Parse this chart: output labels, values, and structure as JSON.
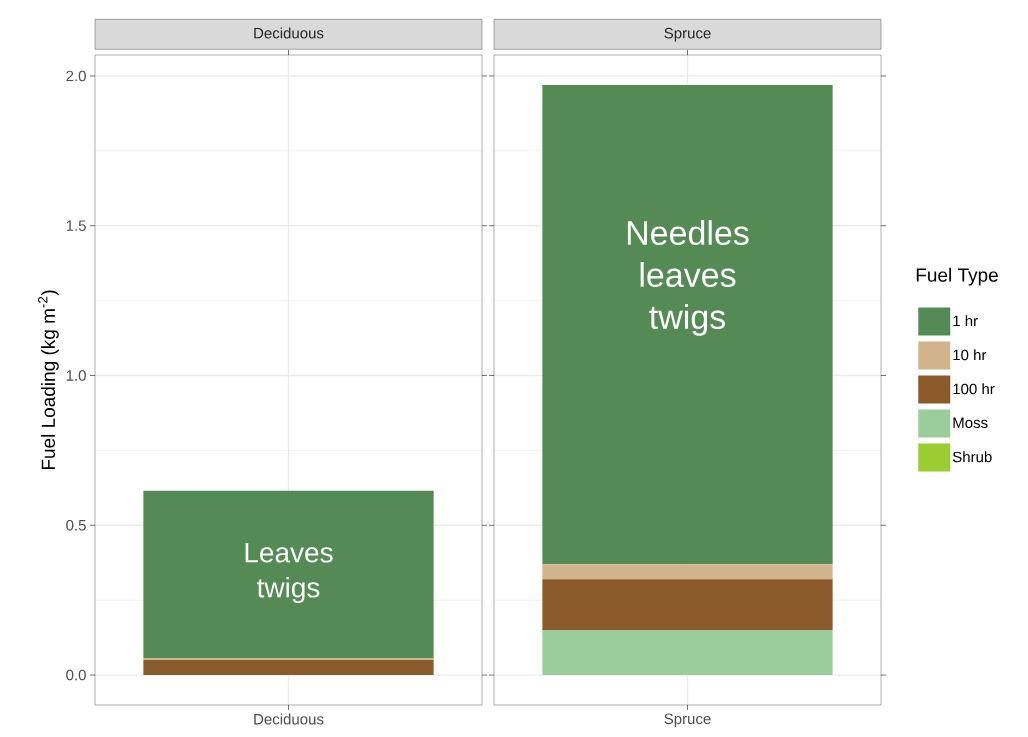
{
  "chart_data": [
    {
      "type": "bar",
      "stacked": true,
      "title": "Deciduous",
      "ylabel": "Fuel Loading (kg m$^{-2}$)",
      "categories": [
        "Deciduous"
      ],
      "series": [
        {
          "color": "#9acd32",
          "values": [
            0
          ]
        },
        {
          "color": "#9bcd9b",
          "values": [
            0
          ]
        },
        {
          "color": "#8b5a2b",
          "values": [
            0.05
          ]
        },
        {
          "color": "#d2b48c",
          "values": [
            0.005
          ]
        },
        {
          "color": "#548b54",
          "values": [
            0.56
          ]
        }
      ],
      "ylim": [
        -0.1,
        2.07
      ],
      "yticks": [
        {
          "value": 0,
          "label": "0.0"
        },
        {
          "value": 0.5,
          "label": "0.5"
        },
        {
          "value": 1,
          "label": "1.0"
        },
        {
          "value": 1.5,
          "label": "1.5"
        },
        {
          "value": 2,
          "label": "2.0"
        }
      ],
      "grid": true,
      "legend": false,
      "annotations": [
        "Leaves twigs"
      ]
    },
    {
      "type": "bar",
      "stacked": true,
      "title": "Spruce",
      "categories": [
        "Spruce"
      ],
      "series": [
        {
          "name": "Shrub",
          "color": "#9acd32",
          "values": [
            0
          ]
        },
        {
          "name": "Moss",
          "color": "#9bcd9b",
          "values": [
            0.15
          ]
        },
        {
          "name": "100 hr",
          "color": "#8b5a2b",
          "values": [
            0.17
          ]
        },
        {
          "name": "10 hr",
          "color": "#d2b48c",
          "values": [
            0.05
          ]
        },
        {
          "name": "1 hr",
          "color": "#548b54",
          "values": [
            1.6
          ]
        }
      ],
      "ylim": [
        -0.1,
        2.07
      ],
      "yticks": [
        0,
        0.5,
        1,
        1.5,
        2
      ],
      "grid": true,
      "legend": "right",
      "legend_title": "Fuel Type",
      "tick_labels": "x",
      "annotations": [
        "Needles leaves twigs"
      ]
    }
  ]
}
